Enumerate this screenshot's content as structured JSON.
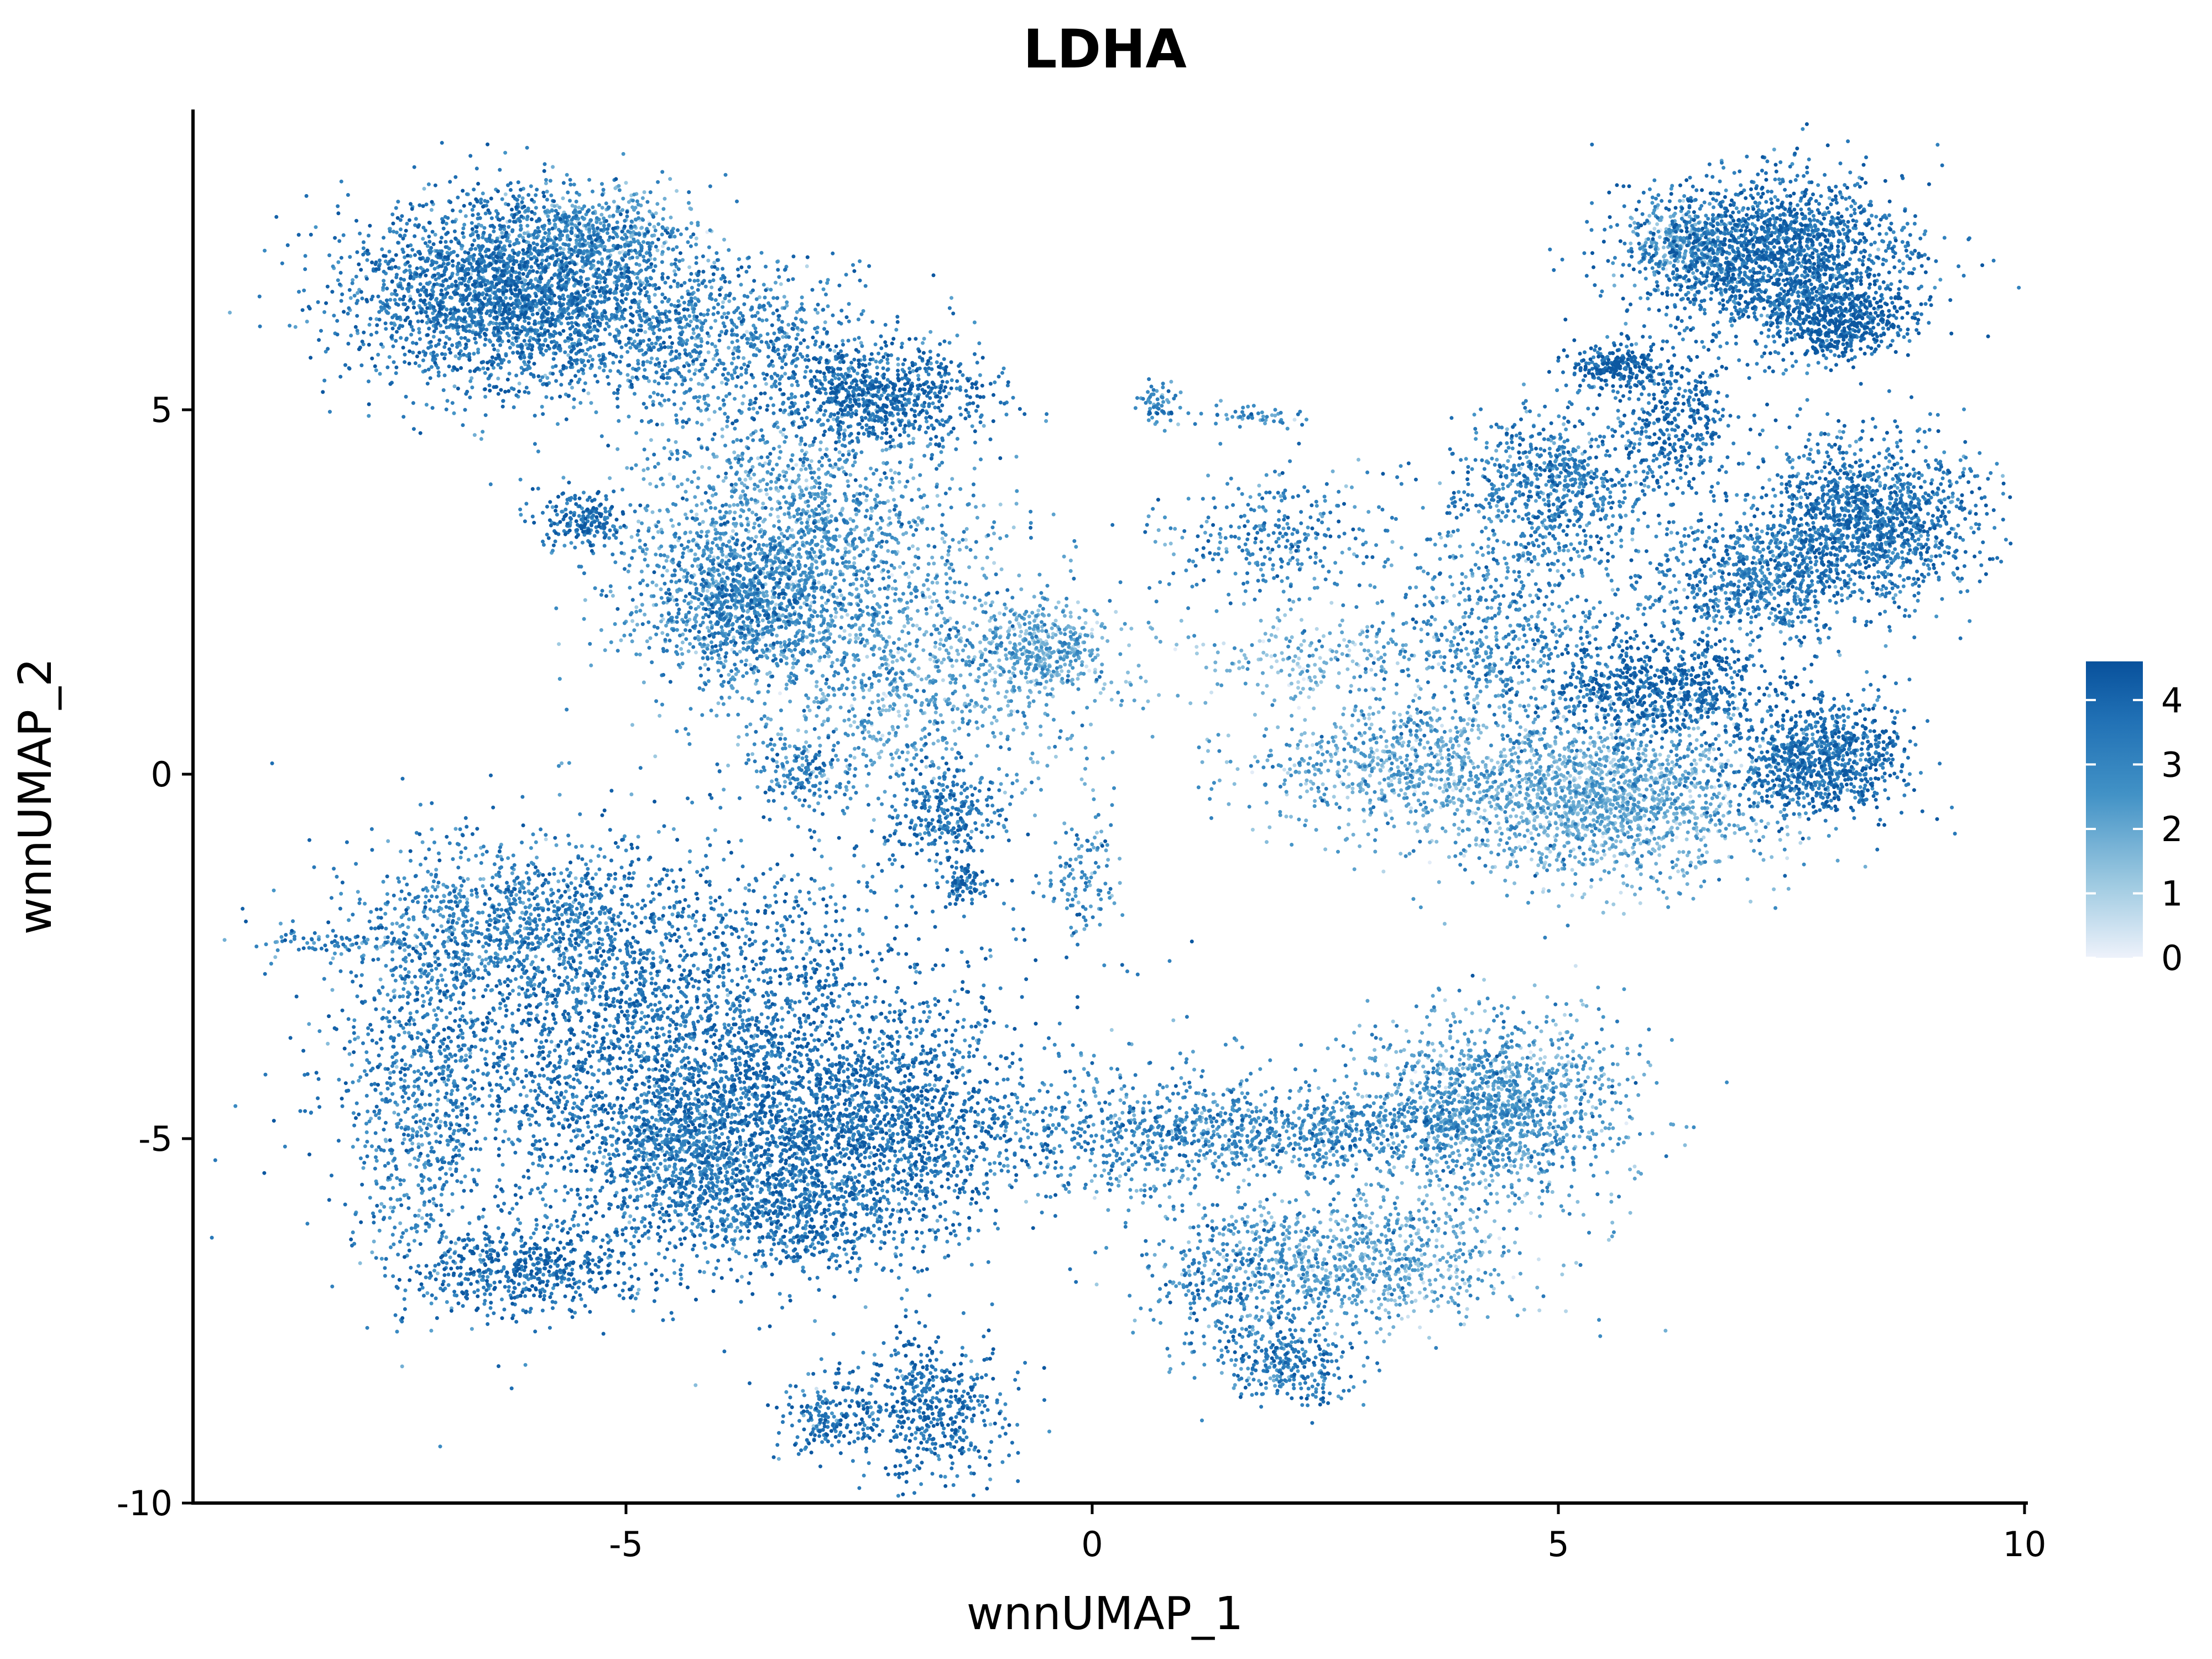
{
  "chart_data": {
    "type": "scatter",
    "title": "LDHA",
    "xlabel": "wnnUMAP_1",
    "ylabel": "wnnUMAP_2",
    "xlim": [
      -9.7,
      10
    ],
    "ylim": [
      -10.1,
      9.1
    ],
    "x_ticks": [
      -5,
      0,
      5,
      10
    ],
    "x_tick_labels": [
      "-5",
      "0",
      "5",
      "10"
    ],
    "y_ticks": [
      -10,
      -5,
      0,
      5
    ],
    "y_tick_labels": [
      "-10",
      "-5",
      "0",
      "5"
    ],
    "grid": false,
    "legend": {
      "placement": "right",
      "type": "colorbar",
      "range": [
        0,
        4.6
      ],
      "ticks": [
        0,
        1,
        2,
        3,
        4
      ],
      "tick_labels": [
        "0",
        "1",
        "2",
        "3",
        "4"
      ],
      "colors": [
        "#eef2fb",
        "#9ecae1",
        "#4292c6",
        "#2171b5",
        "#08519c"
      ]
    },
    "clusters": [
      {
        "cx": -6.3,
        "cy": 6.6,
        "sx": 0.85,
        "sy": 0.65,
        "n": 2600,
        "mean_expr": 3.4
      },
      {
        "cx": -5.3,
        "cy": 7.4,
        "sx": 0.45,
        "sy": 0.3,
        "n": 500,
        "mean_expr": 2.3
      },
      {
        "cx": -4.2,
        "cy": 6.0,
        "sx": 0.9,
        "sy": 0.6,
        "n": 900,
        "mean_expr": 3.0
      },
      {
        "cx": -2.3,
        "cy": 5.2,
        "sx": 0.6,
        "sy": 0.4,
        "n": 800,
        "mean_expr": 3.7
      },
      {
        "cx": -3.2,
        "cy": 3.1,
        "sx": 0.9,
        "sy": 0.9,
        "n": 1800,
        "mean_expr": 2.4
      },
      {
        "cx": -5.5,
        "cy": 3.5,
        "sx": 0.25,
        "sy": 0.2,
        "n": 200,
        "mean_expr": 3.6
      },
      {
        "cx": -3.8,
        "cy": 2.3,
        "sx": 0.55,
        "sy": 0.5,
        "n": 700,
        "mean_expr": 3.1
      },
      {
        "cx": -2.0,
        "cy": 1.2,
        "sx": 1.0,
        "sy": 0.8,
        "n": 900,
        "mean_expr": 2.2
      },
      {
        "cx": -0.5,
        "cy": 1.7,
        "sx": 0.4,
        "sy": 0.3,
        "n": 400,
        "mean_expr": 2.0
      },
      {
        "cx": -1.6,
        "cy": -0.5,
        "sx": 0.35,
        "sy": 0.35,
        "n": 300,
        "mean_expr": 3.4
      },
      {
        "cx": -3.1,
        "cy": 0.0,
        "sx": 0.25,
        "sy": 0.25,
        "n": 150,
        "mean_expr": 3.2
      },
      {
        "cx": -1.4,
        "cy": -1.5,
        "sx": 0.12,
        "sy": 0.15,
        "n": 80,
        "mean_expr": 3.8
      },
      {
        "cx": -0.1,
        "cy": -1.4,
        "sx": 0.2,
        "sy": 0.45,
        "n": 120,
        "mean_expr": 2.8
      },
      {
        "cx": 0.7,
        "cy": 5.1,
        "sx": 0.12,
        "sy": 0.15,
        "n": 60,
        "mean_expr": 2.8
      },
      {
        "cx": 1.7,
        "cy": 4.9,
        "sx": 0.3,
        "sy": 0.08,
        "n": 50,
        "mean_expr": 2.6
      },
      {
        "cx": 1.9,
        "cy": 3.2,
        "sx": 0.6,
        "sy": 0.45,
        "n": 300,
        "mean_expr": 3.0
      },
      {
        "cx": 7.3,
        "cy": 7.1,
        "sx": 0.75,
        "sy": 0.55,
        "n": 2000,
        "mean_expr": 3.6
      },
      {
        "cx": 8.0,
        "cy": 6.2,
        "sx": 0.35,
        "sy": 0.25,
        "n": 500,
        "mean_expr": 4.0
      },
      {
        "cx": 6.3,
        "cy": 7.3,
        "sx": 0.25,
        "sy": 0.25,
        "n": 250,
        "mean_expr": 2.0
      },
      {
        "cx": 5.6,
        "cy": 5.6,
        "sx": 0.25,
        "sy": 0.15,
        "n": 250,
        "mean_expr": 4.0
      },
      {
        "cx": 6.3,
        "cy": 4.9,
        "sx": 0.3,
        "sy": 0.5,
        "n": 350,
        "mean_expr": 3.7
      },
      {
        "cx": 5.0,
        "cy": 4.0,
        "sx": 0.55,
        "sy": 0.5,
        "n": 700,
        "mean_expr": 3.2
      },
      {
        "cx": 8.3,
        "cy": 3.5,
        "sx": 0.6,
        "sy": 0.55,
        "n": 1400,
        "mean_expr": 3.4
      },
      {
        "cx": 7.1,
        "cy": 2.7,
        "sx": 0.6,
        "sy": 0.45,
        "n": 700,
        "mean_expr": 3.2
      },
      {
        "cx": 4.4,
        "cy": 2.0,
        "sx": 0.8,
        "sy": 0.8,
        "n": 700,
        "mean_expr": 2.8
      },
      {
        "cx": 7.8,
        "cy": 0.2,
        "sx": 0.45,
        "sy": 0.4,
        "n": 900,
        "mean_expr": 3.6
      },
      {
        "cx": 5.5,
        "cy": -0.3,
        "sx": 0.9,
        "sy": 0.6,
        "n": 1800,
        "mean_expr": 1.9
      },
      {
        "cx": 6.1,
        "cy": 1.2,
        "sx": 0.6,
        "sy": 0.35,
        "n": 700,
        "mean_expr": 3.9
      },
      {
        "cx": 3.3,
        "cy": 0.1,
        "sx": 0.8,
        "sy": 0.45,
        "n": 700,
        "mean_expr": 2.0
      },
      {
        "cx": 2.4,
        "cy": 1.6,
        "sx": 0.7,
        "sy": 0.3,
        "n": 200,
        "mean_expr": 1.5
      },
      {
        "cx": -4.4,
        "cy": -3.8,
        "sx": 1.6,
        "sy": 1.3,
        "n": 3800,
        "mean_expr": 3.5
      },
      {
        "cx": -2.3,
        "cy": -4.8,
        "sx": 0.9,
        "sy": 0.6,
        "n": 1200,
        "mean_expr": 3.6
      },
      {
        "cx": -6.2,
        "cy": -2.0,
        "sx": 0.8,
        "sy": 0.5,
        "n": 800,
        "mean_expr": 3.0
      },
      {
        "cx": -3.2,
        "cy": -6.0,
        "sx": 0.8,
        "sy": 0.4,
        "n": 700,
        "mean_expr": 3.4
      },
      {
        "cx": -4.3,
        "cy": -5.2,
        "sx": 0.6,
        "sy": 0.5,
        "n": 700,
        "mean_expr": 3.0
      },
      {
        "cx": -7.2,
        "cy": -4.5,
        "sx": 0.4,
        "sy": 1.3,
        "n": 700,
        "mean_expr": 3.0
      },
      {
        "cx": -6.0,
        "cy": -6.8,
        "sx": 0.6,
        "sy": 0.3,
        "n": 500,
        "mean_expr": 3.7
      },
      {
        "cx": -8.1,
        "cy": -2.3,
        "sx": 0.4,
        "sy": 0.08,
        "n": 60,
        "mean_expr": 3.0
      },
      {
        "cx": -1.7,
        "cy": -8.7,
        "sx": 0.4,
        "sy": 0.5,
        "n": 500,
        "mean_expr": 3.6
      },
      {
        "cx": -2.8,
        "cy": -8.8,
        "sx": 0.25,
        "sy": 0.3,
        "n": 200,
        "mean_expr": 3.4
      },
      {
        "cx": 4.3,
        "cy": -4.5,
        "sx": 0.7,
        "sy": 0.6,
        "n": 1400,
        "mean_expr": 2.3
      },
      {
        "cx": 2.0,
        "cy": -4.9,
        "sx": 1.3,
        "sy": 0.3,
        "n": 900,
        "mean_expr": 2.8
      },
      {
        "cx": 2.8,
        "cy": -6.7,
        "sx": 0.9,
        "sy": 0.45,
        "n": 900,
        "mean_expr": 2.1
      },
      {
        "cx": 2.1,
        "cy": -8.1,
        "sx": 0.35,
        "sy": 0.3,
        "n": 300,
        "mean_expr": 3.2
      },
      {
        "cx": 0.5,
        "cy": -5.0,
        "sx": 0.7,
        "sy": 0.6,
        "n": 300,
        "mean_expr": 2.6
      },
      {
        "cx": 1.5,
        "cy": -7.0,
        "sx": 0.5,
        "sy": 0.5,
        "n": 300,
        "mean_expr": 3.0
      }
    ]
  }
}
